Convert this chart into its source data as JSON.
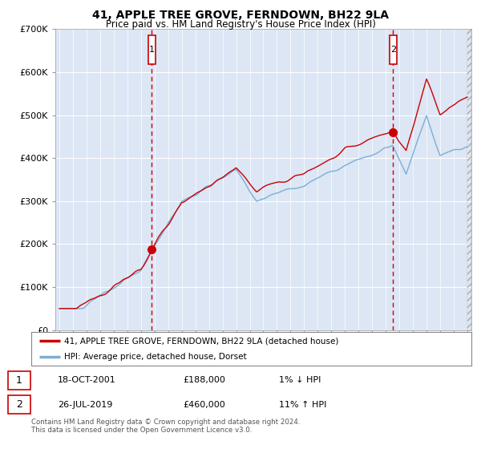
{
  "title": "41, APPLE TREE GROVE, FERNDOWN, BH22 9LA",
  "subtitle": "Price paid vs. HM Land Registry's House Price Index (HPI)",
  "xlim": [
    1994.7,
    2025.3
  ],
  "ylim": [
    0,
    700000
  ],
  "yticks": [
    0,
    100000,
    200000,
    300000,
    400000,
    500000,
    600000,
    700000
  ],
  "ytick_labels": [
    "£0",
    "£100K",
    "£200K",
    "£300K",
    "£400K",
    "£500K",
    "£600K",
    "£700K"
  ],
  "xticks": [
    1995,
    1996,
    1997,
    1998,
    1999,
    2000,
    2001,
    2002,
    2003,
    2004,
    2005,
    2006,
    2007,
    2008,
    2009,
    2010,
    2011,
    2012,
    2013,
    2014,
    2015,
    2016,
    2017,
    2018,
    2019,
    2020,
    2021,
    2022,
    2023,
    2024,
    2025
  ],
  "plot_bg_color": "#dce6f5",
  "fig_bg_color": "#ffffff",
  "grid_color": "#ffffff",
  "red_line_color": "#cc0000",
  "blue_line_color": "#7bafd4",
  "marker1_year": 2001.8,
  "marker2_year": 2019.55,
  "marker1_price": 188000,
  "marker2_price": 460000,
  "legend_label_red": "41, APPLE TREE GROVE, FERNDOWN, BH22 9LA (detached house)",
  "legend_label_blue": "HPI: Average price, detached house, Dorset",
  "transaction1_date": "18-OCT-2001",
  "transaction1_price": "£188,000",
  "transaction1_hpi": "1% ↓ HPI",
  "transaction2_date": "26-JUL-2019",
  "transaction2_price": "£460,000",
  "transaction2_hpi": "11% ↑ HPI",
  "footer": "Contains HM Land Registry data © Crown copyright and database right 2024.\nThis data is licensed under the Open Government Licence v3.0."
}
